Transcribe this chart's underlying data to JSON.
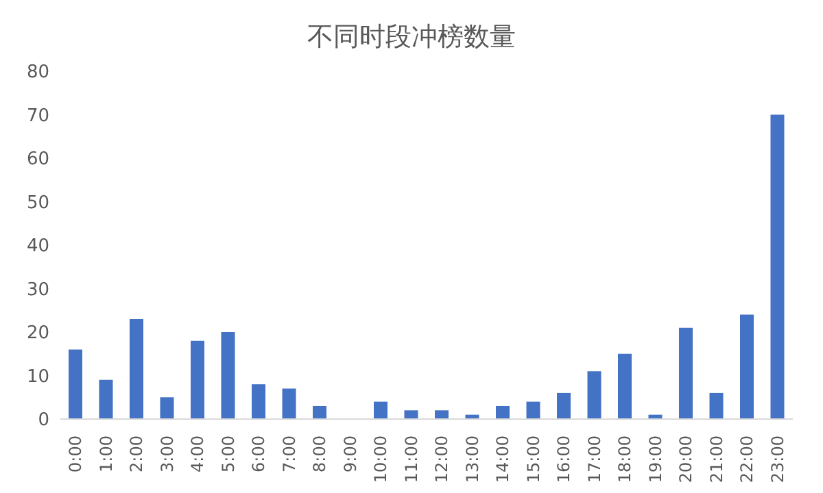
{
  "chart_data": {
    "type": "bar",
    "title": "不同时段冲榜数量",
    "categories": [
      "0:00",
      "1:00",
      "2:00",
      "3:00",
      "4:00",
      "5:00",
      "6:00",
      "7:00",
      "8:00",
      "9:00",
      "10:00",
      "11:00",
      "12:00",
      "13:00",
      "14:00",
      "15:00",
      "16:00",
      "17:00",
      "18:00",
      "19:00",
      "20:00",
      "21:00",
      "22:00",
      "23:00"
    ],
    "values": [
      16,
      9,
      23,
      5,
      18,
      20,
      8,
      7,
      3,
      0,
      4,
      2,
      2,
      1,
      3,
      4,
      6,
      11,
      15,
      1,
      21,
      6,
      24,
      70
    ],
    "color": "#4472c4",
    "ylim": [
      0,
      80
    ],
    "yticks": [
      0,
      10,
      20,
      30,
      40,
      50,
      60,
      70,
      80
    ],
    "grid": false
  }
}
